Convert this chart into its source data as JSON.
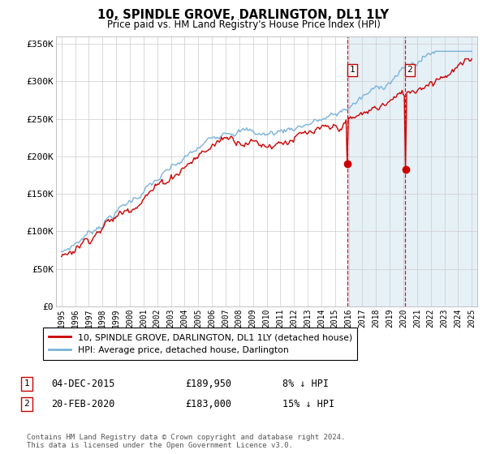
{
  "title": "10, SPINDLE GROVE, DARLINGTON, DL1 1LY",
  "subtitle": "Price paid vs. HM Land Registry's House Price Index (HPI)",
  "ylim": [
    0,
    360000
  ],
  "yticks": [
    0,
    50000,
    100000,
    150000,
    200000,
    250000,
    300000,
    350000
  ],
  "ytick_labels": [
    "£0",
    "£50K",
    "£100K",
    "£150K",
    "£200K",
    "£250K",
    "£300K",
    "£350K"
  ],
  "hpi_color": "#7ab3d9",
  "price_color": "#cc0000",
  "marker1_date_x": 2015.92,
  "marker1_date_label": "04-DEC-2015",
  "marker1_price": 189950,
  "marker1_price_label": "£189,950",
  "marker1_hpi_pct": "8% ↓ HPI",
  "marker2_date_x": 2020.12,
  "marker2_date_label": "20-FEB-2020",
  "marker2_price": 183000,
  "marker2_price_label": "£183,000",
  "marker2_hpi_pct": "15% ↓ HPI",
  "legend_label1": "10, SPINDLE GROVE, DARLINGTON, DL1 1LY (detached house)",
  "legend_label2": "HPI: Average price, detached house, Darlington",
  "footnote": "Contains HM Land Registry data © Crown copyright and database right 2024.\nThis data is licensed under the Open Government Licence v3.0.",
  "highlight_color": "#dceaf5",
  "marker_box_color": "#cc0000",
  "xlim_left": 1994.6,
  "xlim_right": 2025.4
}
